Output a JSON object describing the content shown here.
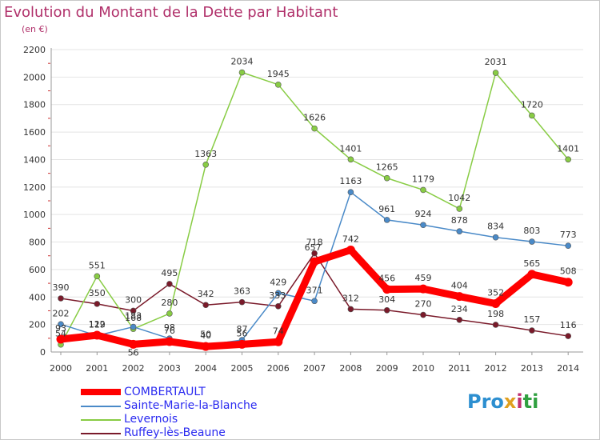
{
  "chart_data": {
    "type": "line",
    "title": "Evolution du Montant de la Dette par Habitant",
    "subtitle": "(en €)",
    "x": [
      "2000",
      "2001",
      "2002",
      "2003",
      "2004",
      "2005",
      "2006",
      "2007",
      "2008",
      "2009",
      "2010",
      "2011",
      "2012",
      "2013",
      "2014"
    ],
    "ylim": [
      0,
      2200
    ],
    "yticks": [
      0,
      200,
      400,
      600,
      800,
      1000,
      1200,
      1400,
      1600,
      1800,
      2000,
      2200
    ],
    "grid": true,
    "legend_position": "bottom-left",
    "series": [
      {
        "name": "Ruffey-lès-Beaune",
        "color": "#7a1a2a",
        "values": [
          390,
          350,
          300,
          495,
          342,
          363,
          333,
          718,
          312,
          304,
          270,
          234,
          198,
          157,
          116
        ]
      },
      {
        "name": "Levernois",
        "color": "#88cc44",
        "values": [
          54,
          551,
          168,
          280,
          1363,
          2034,
          1945,
          1626,
          1401,
          1265,
          1179,
          1042,
          2031,
          1720,
          1401
        ]
      },
      {
        "name": "Sainte-Marie-la-Blanche",
        "color": "#4a8ac8",
        "values": [
          202,
          119,
          183,
          98,
          50,
          87,
          429,
          371,
          1163,
          961,
          924,
          878,
          834,
          803,
          773
        ]
      },
      {
        "name": "COMBERTAULT",
        "color": "#ff0000",
        "values": [
          93,
          122,
          56,
          76,
          40,
          56,
          74,
          657,
          742,
          456,
          459,
          404,
          352,
          565,
          508
        ]
      }
    ],
    "label_offsets": {
      "COMBERTAULT": [
        [
          0,
          -10
        ],
        [
          0,
          -10
        ],
        [
          0,
          14
        ],
        [
          0,
          -10
        ],
        [
          0,
          -10
        ],
        [
          0,
          -10
        ],
        [
          0,
          -10
        ],
        [
          -2,
          -14
        ],
        [
          0,
          -10
        ],
        [
          0,
          -10
        ],
        [
          0,
          -10
        ],
        [
          0,
          -10
        ],
        [
          0,
          -10
        ],
        [
          0,
          -10
        ],
        [
          0,
          -10
        ]
      ],
      "Sainte-Marie-la-Blanche": [
        [
          0,
          -10
        ],
        [
          0,
          -10
        ],
        [
          0,
          -10
        ],
        [
          0,
          -10
        ],
        [
          0,
          -10
        ],
        [
          0,
          -10
        ],
        [
          0,
          -10
        ],
        [
          0,
          -10
        ],
        [
          0,
          -10
        ],
        [
          0,
          -10
        ],
        [
          0,
          -10
        ],
        [
          0,
          -10
        ],
        [
          0,
          -10
        ],
        [
          0,
          -10
        ],
        [
          0,
          -10
        ]
      ],
      "Levernois": [
        [
          0,
          -10
        ],
        [
          0,
          -10
        ],
        [
          0,
          -10
        ],
        [
          0,
          -10
        ],
        [
          0,
          -10
        ],
        [
          0,
          -10
        ],
        [
          0,
          -10
        ],
        [
          0,
          -10
        ],
        [
          0,
          -10
        ],
        [
          0,
          -10
        ],
        [
          0,
          -10
        ],
        [
          0,
          -10
        ],
        [
          0,
          -10
        ],
        [
          0,
          -10
        ],
        [
          0,
          -10
        ]
      ],
      "Ruffey-lès-Beaune": [
        [
          0,
          -10
        ],
        [
          0,
          -10
        ],
        [
          0,
          -10
        ],
        [
          0,
          -10
        ],
        [
          0,
          -10
        ],
        [
          0,
          -10
        ],
        [
          -1,
          -10
        ],
        [
          0,
          -10
        ],
        [
          0,
          -10
        ],
        [
          0,
          -10
        ],
        [
          0,
          -10
        ],
        [
          0,
          -10
        ],
        [
          0,
          -10
        ],
        [
          0,
          -10
        ],
        [
          0,
          -10
        ]
      ]
    }
  },
  "legend": {
    "items": [
      {
        "label": "COMBERTAULT",
        "color": "#ff0000",
        "width": 8
      },
      {
        "label": "Sainte-Marie-la-Blanche",
        "color": "#4a8ac8",
        "width": 2
      },
      {
        "label": "Levernois",
        "color": "#88cc44",
        "width": 2
      },
      {
        "label": "Ruffey-lès-Beaune",
        "color": "#7a1a2a",
        "width": 2
      }
    ]
  },
  "logo": {
    "parts": [
      "Pro",
      "x",
      "i",
      "ti"
    ]
  }
}
